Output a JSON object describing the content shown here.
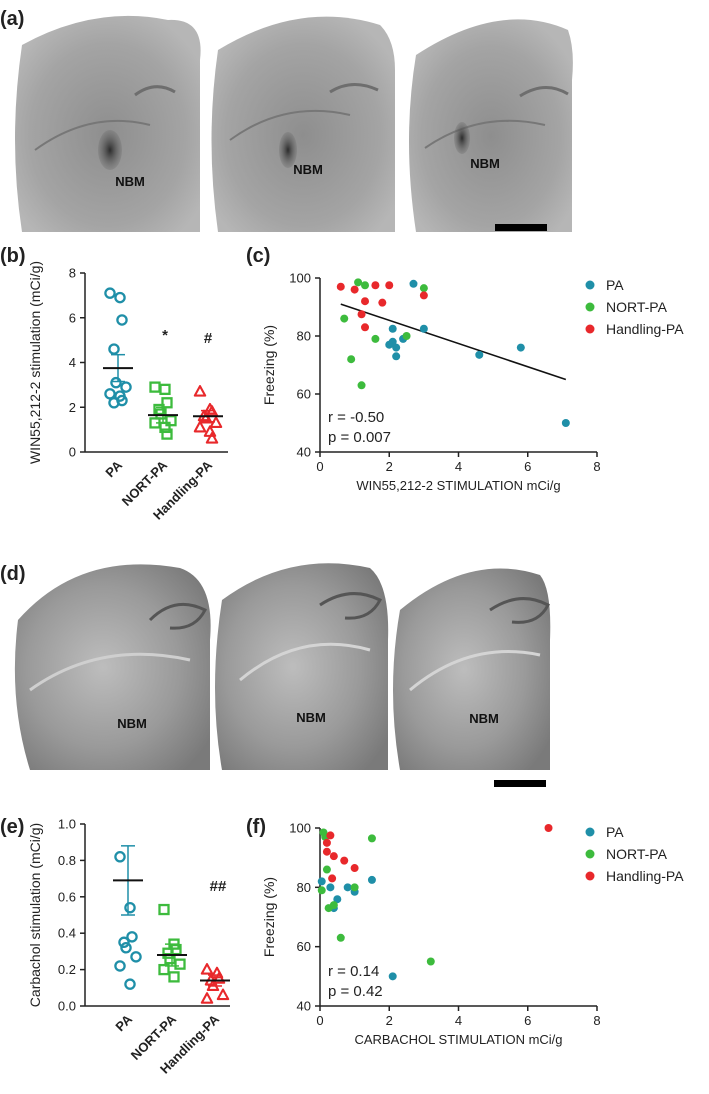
{
  "colors": {
    "pa": "#1f8fa8",
    "nort": "#3dbb3d",
    "handling": "#e8282b",
    "axis": "#222222"
  },
  "panels": {
    "a": {
      "letter": "(a)",
      "labels": [
        "NBM",
        "NBM",
        "NBM"
      ]
    },
    "b": {
      "letter": "(b)"
    },
    "c": {
      "letter": "(c)"
    },
    "d": {
      "letter": "(d)",
      "labels": [
        "NBM",
        "NBM",
        "NBM"
      ]
    },
    "e": {
      "letter": "(e)"
    },
    "f": {
      "letter": "(f)"
    }
  },
  "chart_data": [
    {
      "panel": "b",
      "type": "scatter",
      "ylabel": "WIN55,212-2 stimulation (mCi/g)",
      "ylim": [
        0,
        8
      ],
      "yticks": [
        "0",
        "2",
        "4",
        "6",
        "8"
      ],
      "categories": [
        "PA",
        "NORT-PA",
        "Handling-PA"
      ],
      "series": [
        {
          "category": "PA",
          "marker": "circle",
          "mean": 3.75,
          "sem": [
            3.15,
            4.35
          ],
          "points": [
            7.1,
            6.9,
            5.9,
            4.6,
            3.1,
            2.9,
            2.6,
            2.5,
            2.3,
            2.2
          ]
        },
        {
          "category": "NORT-PA",
          "marker": "square",
          "mean": 1.65,
          "sem": [
            1.3,
            2.0
          ],
          "points": [
            2.9,
            2.8,
            2.2,
            1.9,
            1.7,
            1.4,
            1.3,
            1.1,
            0.8
          ]
        },
        {
          "category": "Handling-PA",
          "marker": "triangle",
          "mean": 1.6,
          "sem": [
            1.35,
            1.85
          ],
          "points": [
            2.7,
            1.9,
            1.8,
            1.6,
            1.5,
            1.3,
            1.1,
            0.9,
            0.6
          ]
        }
      ],
      "annotations": [
        "*",
        "#"
      ]
    },
    {
      "panel": "c",
      "type": "scatter",
      "xlabel": "WIN55,212-2 STIMULATION mCi/g",
      "ylabel": "Freezing (%)",
      "xlim": [
        0,
        8
      ],
      "ylim": [
        40,
        100
      ],
      "xticks": [
        "0",
        "2",
        "4",
        "6",
        "8"
      ],
      "yticks": [
        "40",
        "60",
        "80",
        "100"
      ],
      "legend": [
        "PA",
        "NORT-PA",
        "Handling-PA"
      ],
      "stats": [
        "r = -0.50",
        "p = 0.007"
      ],
      "trendline": [
        [
          0.6,
          91
        ],
        [
          7.1,
          65
        ]
      ],
      "series": [
        {
          "name": "PA",
          "points": [
            [
              2.7,
              98
            ],
            [
              3.0,
              82.5
            ],
            [
              2.1,
              82.5
            ],
            [
              2.4,
              79
            ],
            [
              2.1,
              78
            ],
            [
              2.0,
              77
            ],
            [
              2.2,
              76
            ],
            [
              2.2,
              73
            ],
            [
              4.6,
              73.5
            ],
            [
              5.8,
              76
            ],
            [
              7.1,
              50
            ]
          ]
        },
        {
          "name": "NORT-PA",
          "points": [
            [
              1.1,
              98.5
            ],
            [
              3.0,
              96.5
            ],
            [
              0.7,
              86
            ],
            [
              1.6,
              79
            ],
            [
              2.5,
              80
            ],
            [
              0.9,
              72
            ],
            [
              1.2,
              63
            ],
            [
              1.3,
              97.5
            ]
          ]
        },
        {
          "name": "Handling-PA",
          "points": [
            [
              0.6,
              97
            ],
            [
              1.0,
              96
            ],
            [
              1.3,
              92
            ],
            [
              1.2,
              87.5
            ],
            [
              1.6,
              97.5
            ],
            [
              2.0,
              97.5
            ],
            [
              1.8,
              91.5
            ],
            [
              3.0,
              94
            ],
            [
              1.3,
              83
            ]
          ]
        }
      ]
    },
    {
      "panel": "e",
      "type": "scatter",
      "ylabel": "Carbachol stimulation (mCi/g)",
      "ylim": [
        0,
        1.0
      ],
      "yticks": [
        "0.0",
        "0.2",
        "0.4",
        "0.6",
        "0.8",
        "1.0"
      ],
      "categories": [
        "PA",
        "NORT-PA",
        "Handling-PA"
      ],
      "series": [
        {
          "category": "PA",
          "marker": "circle",
          "mean": 0.69,
          "sem": [
            0.5,
            0.88
          ],
          "points": [
            0.82,
            0.54,
            0.38,
            0.35,
            0.32,
            0.27,
            0.22,
            0.12
          ]
        },
        {
          "category": "NORT-PA",
          "marker": "square",
          "mean": 0.28,
          "sem": [
            0.22,
            0.34
          ],
          "points": [
            0.53,
            0.34,
            0.31,
            0.29,
            0.26,
            0.23,
            0.2,
            0.16
          ]
        },
        {
          "category": "Handling-PA",
          "marker": "triangle",
          "mean": 0.14,
          "sem": [
            0.11,
            0.17
          ],
          "points": [
            0.2,
            0.18,
            0.15,
            0.14,
            0.11,
            0.06,
            0.04
          ]
        }
      ],
      "annotations": [
        "##"
      ]
    },
    {
      "panel": "f",
      "type": "scatter",
      "xlabel": "CARBACHOL STIMULATION mCi/g",
      "ylabel": "Freezing (%)",
      "xlim": [
        0,
        8
      ],
      "ylim": [
        40,
        100
      ],
      "xticks": [
        "0",
        "2",
        "4",
        "6",
        "8"
      ],
      "yticks": [
        "40",
        "60",
        "80",
        "100"
      ],
      "legend": [
        "PA",
        "NORT-PA",
        "Handling-PA"
      ],
      "stats": [
        "r = 0.14",
        "p = 0.42"
      ],
      "series": [
        {
          "name": "PA",
          "points": [
            [
              0.05,
              82
            ],
            [
              0.5,
              76
            ],
            [
              0.4,
              73
            ],
            [
              0.8,
              80
            ],
            [
              1.0,
              78.5
            ],
            [
              1.5,
              82.5
            ],
            [
              2.1,
              50
            ],
            [
              0.3,
              80
            ]
          ]
        },
        {
          "name": "NORT-PA",
          "points": [
            [
              0.1,
              98.5
            ],
            [
              0.15,
              97
            ],
            [
              0.2,
              86
            ],
            [
              0.25,
              73
            ],
            [
              0.05,
              79
            ],
            [
              0.6,
              63
            ],
            [
              1.5,
              96.5
            ],
            [
              3.2,
              55
            ],
            [
              0.4,
              74
            ],
            [
              1.0,
              80
            ]
          ]
        },
        {
          "name": "Handling-PA",
          "points": [
            [
              6.6,
              100
            ],
            [
              0.3,
              97.5
            ],
            [
              0.2,
              92
            ],
            [
              0.4,
              90.5
            ],
            [
              0.7,
              89
            ],
            [
              1.0,
              86.5
            ],
            [
              0.35,
              83
            ],
            [
              0.2,
              95
            ]
          ]
        }
      ]
    }
  ]
}
